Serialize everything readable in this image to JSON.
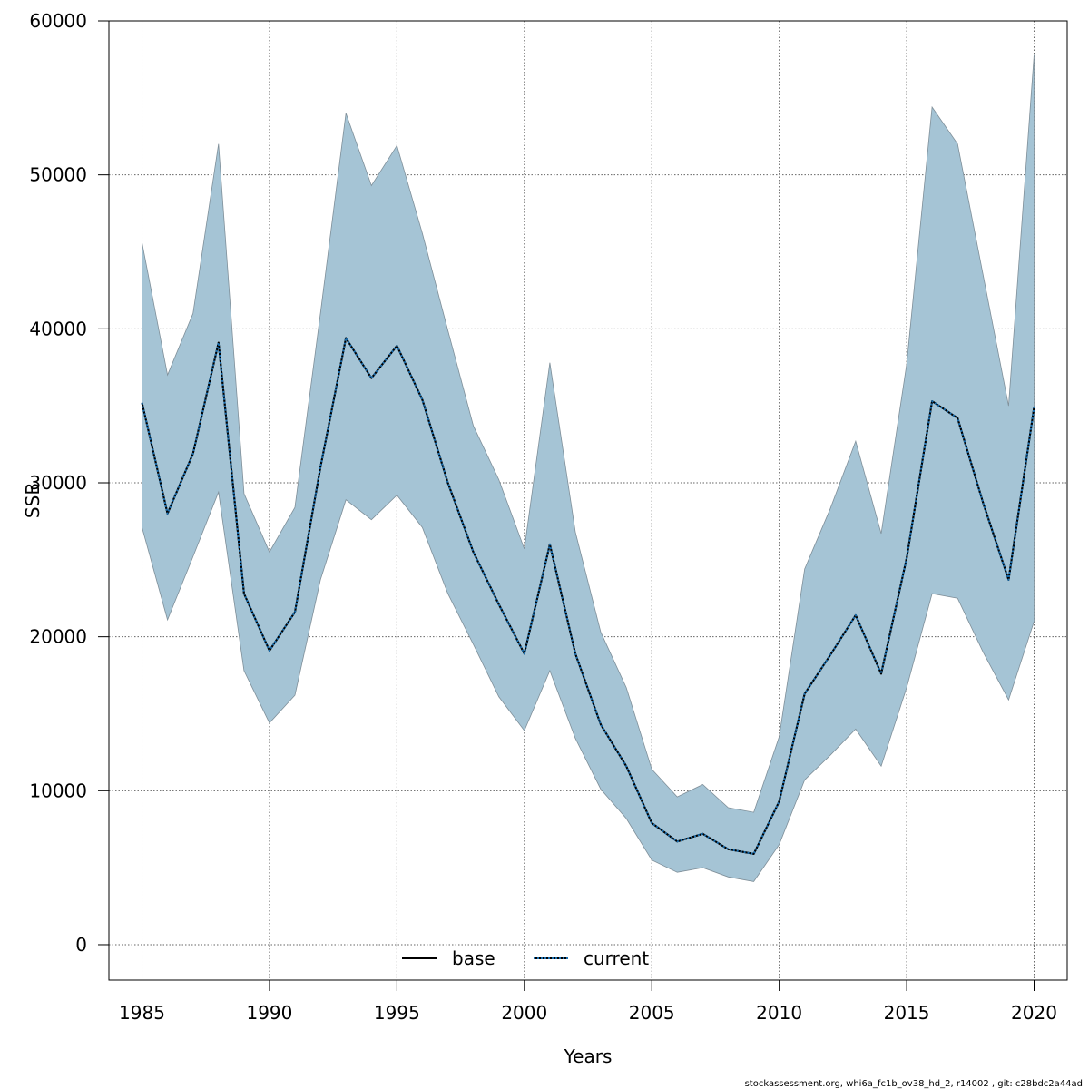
{
  "chart_data": {
    "type": "line",
    "xlabel": "Years",
    "ylabel": "SSB",
    "xlim": [
      1983.7,
      2021.3
    ],
    "ylim": [
      -2300,
      60000
    ],
    "x_ticks": [
      1985,
      1990,
      1995,
      2000,
      2005,
      2010,
      2015,
      2020
    ],
    "y_ticks": [
      0,
      10000,
      20000,
      30000,
      40000,
      50000,
      60000
    ],
    "grid": true,
    "legend_position": "bottom-center",
    "colors": {
      "band": "#a5c4d5",
      "band_edge": "#7f8f99",
      "base": "#000000",
      "current": "#1a6fb0"
    },
    "x": [
      1985,
      1986,
      1987,
      1988,
      1989,
      1990,
      1991,
      1992,
      1993,
      1994,
      1995,
      1996,
      1997,
      1998,
      1999,
      2000,
      2001,
      2002,
      2003,
      2004,
      2005,
      2006,
      2007,
      2008,
      2009,
      2010,
      2011,
      2012,
      2013,
      2014,
      2015,
      2016,
      2017,
      2018,
      2019,
      2020
    ],
    "band": {
      "upper": [
        45600,
        37000,
        41000,
        52000,
        29300,
        25500,
        28400,
        41000,
        54000,
        49300,
        51900,
        46200,
        39900,
        33700,
        30200,
        25700,
        37800,
        26800,
        20300,
        16700,
        11400,
        9600,
        10400,
        8900,
        8600,
        13500,
        24400,
        28300,
        32700,
        26700,
        37700,
        54400,
        52000,
        43500,
        35000,
        57800
      ],
      "lower": [
        27100,
        21100,
        25200,
        29400,
        17800,
        14400,
        16200,
        23700,
        28900,
        27600,
        29200,
        27100,
        22800,
        19500,
        16100,
        13900,
        17800,
        13400,
        10100,
        8200,
        5500,
        4700,
        5000,
        4400,
        4100,
        6500,
        10700,
        12300,
        14000,
        11600,
        16700,
        22800,
        22500,
        19000,
        15900,
        21000
      ]
    },
    "series": [
      {
        "name": "base",
        "style": "solid",
        "values": [
          35200,
          28000,
          31900,
          39100,
          22800,
          19100,
          21600,
          31000,
          39400,
          36800,
          38900,
          35400,
          30000,
          25500,
          22100,
          18900,
          26000,
          18900,
          14300,
          11600,
          7900,
          6700,
          7200,
          6200,
          5900,
          9300,
          16300,
          18800,
          21400,
          17600,
          25100,
          35300,
          34200,
          28700,
          23700,
          34900
        ]
      },
      {
        "name": "current",
        "style": "dotted",
        "values": [
          35200,
          28000,
          31900,
          39100,
          22800,
          19100,
          21600,
          31000,
          39400,
          36800,
          38900,
          35400,
          30000,
          25500,
          22100,
          18900,
          26000,
          18900,
          14300,
          11600,
          7900,
          6700,
          7200,
          6200,
          5900,
          9300,
          16300,
          18800,
          21400,
          17600,
          25100,
          35300,
          34200,
          28700,
          23700,
          34900
        ]
      }
    ],
    "footer": "stockassessment.org, whi6a_fc1b_ov38_hd_2, r14002 , git: c28bdc2a44ad"
  }
}
